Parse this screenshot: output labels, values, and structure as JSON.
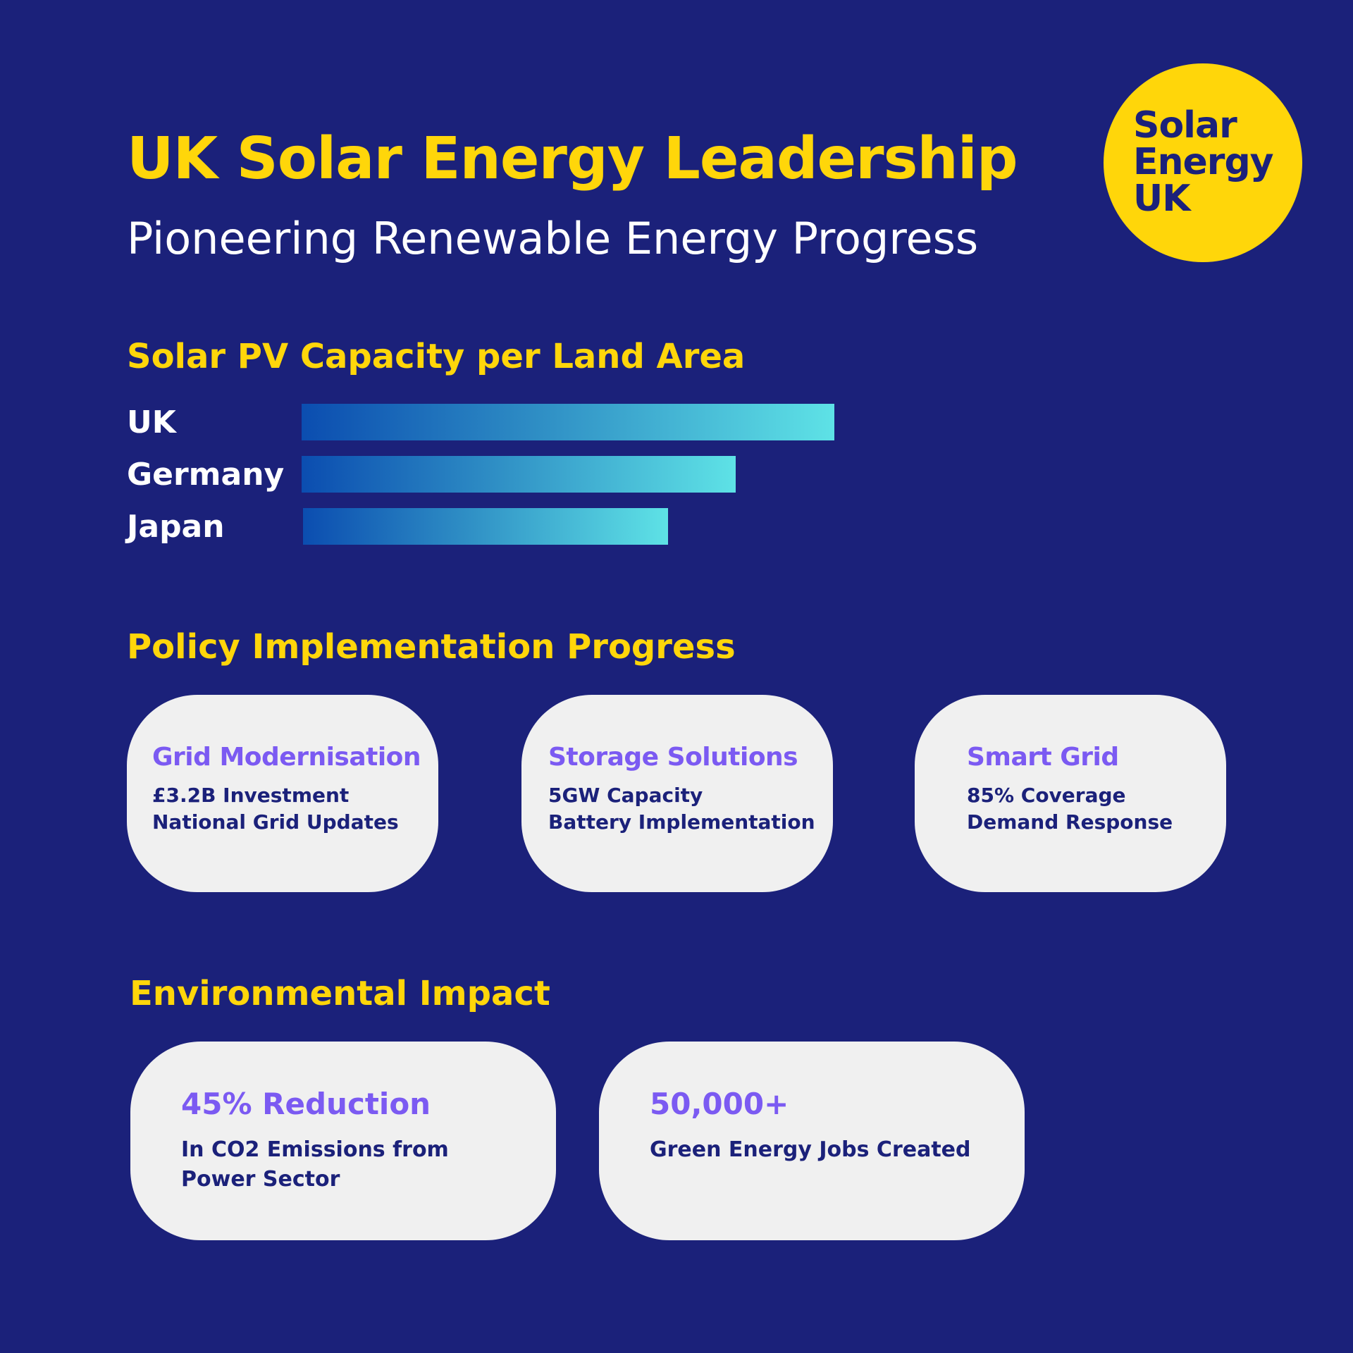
{
  "header": {
    "title": "UK Solar Energy Leadership",
    "subtitle": "Pioneering Renewable Energy Progress"
  },
  "logo": {
    "lines": [
      "Solar",
      "Energy",
      "UK"
    ]
  },
  "capacity": {
    "heading": "Solar PV Capacity per Land Area"
  },
  "chart_data": {
    "type": "bar",
    "orientation": "horizontal",
    "title": "Solar PV Capacity per Land Area",
    "categories": [
      "UK",
      "Germany",
      "Japan"
    ],
    "values": [
      100,
      81.5,
      68.5
    ],
    "xlim": [
      0,
      100
    ]
  },
  "policy": {
    "heading": "Policy Implementation Progress",
    "cards": [
      {
        "title": "Grid Modernisation",
        "lines": [
          "£3.2B Investment",
          "National Grid Updates"
        ]
      },
      {
        "title": "Storage Solutions",
        "lines": [
          "5GW Capacity",
          "Battery Implementation"
        ]
      },
      {
        "title": "Smart Grid",
        "lines": [
          "85% Coverage",
          "Demand Response"
        ]
      }
    ]
  },
  "environment": {
    "heading": "Environmental Impact",
    "cards": [
      {
        "title": "45% Reduction",
        "lines": [
          "In CO2 Emissions from",
          "Power Sector"
        ]
      },
      {
        "title": "50,000+",
        "lines": [
          "Green Energy Jobs Created"
        ]
      }
    ]
  },
  "colors": {
    "background": "#1b217a",
    "accent_yellow": "#ffd60a",
    "card_background": "#f0f0f0",
    "card_title": "#7b5af2",
    "card_text": "#1b217a",
    "bar_gradient_start": "#0b4db0",
    "bar_gradient_end": "#5ee2e6"
  }
}
